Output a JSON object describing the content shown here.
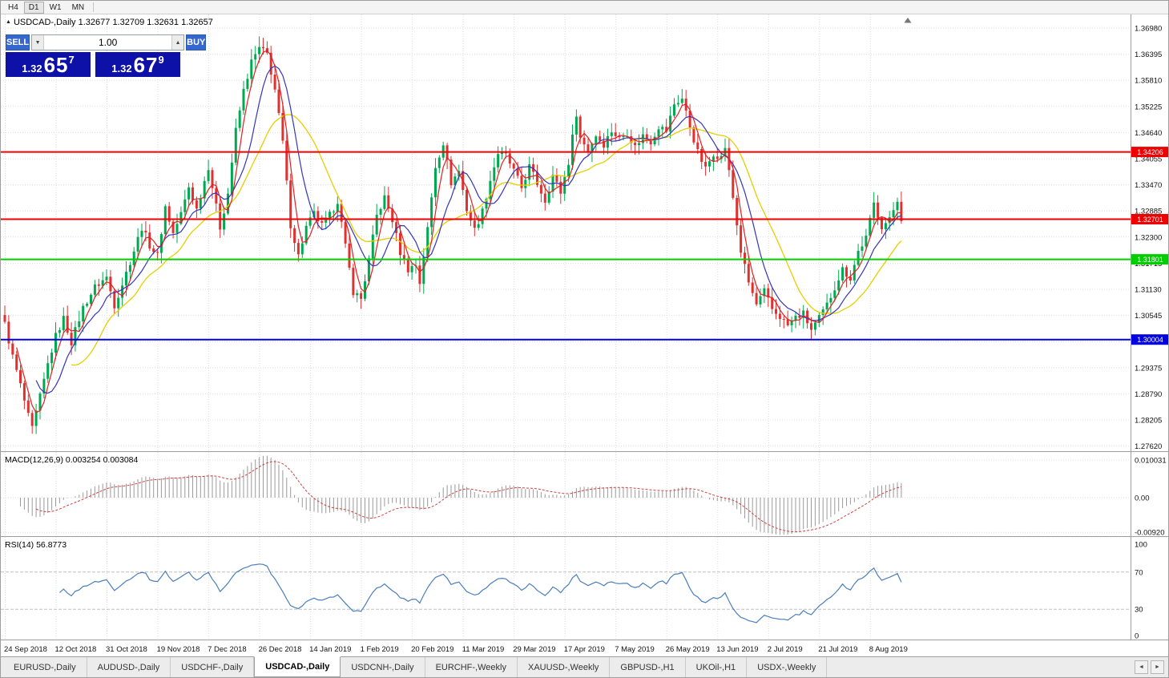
{
  "toolbar": {
    "timeframes": [
      "H4",
      "D1",
      "W1",
      "MN"
    ],
    "active": "D1"
  },
  "chart": {
    "marker": "▲",
    "symbol": "USDCAD-,Daily",
    "ohlc": "1.32677 1.32709 1.32631 1.32657"
  },
  "trade_panel": {
    "sell_label": "SELL",
    "buy_label": "BUY",
    "volume": "1.00",
    "spinner_down": "▼",
    "spinner_up": "▲",
    "sell_price": {
      "prefix": "1.32",
      "big": "65",
      "sup": "7"
    },
    "buy_price": {
      "prefix": "1.32",
      "big": "67",
      "sup": "9"
    }
  },
  "price_axis": {
    "ticks": [
      "1.36980",
      "1.36395",
      "1.35810",
      "1.35225",
      "1.34640",
      "1.34055",
      "1.33470",
      "1.32885",
      "1.32300",
      "1.31715",
      "1.31130",
      "1.30545",
      "1.29960",
      "1.29375",
      "1.28790",
      "1.28205",
      "1.27620"
    ]
  },
  "hlines": [
    {
      "label": "1.34206",
      "price": 1.34206,
      "color": "#EE0000"
    },
    {
      "label": "1.32701",
      "price": 1.32701,
      "color": "#EE0000"
    },
    {
      "label": "1.31801",
      "price": 1.31801,
      "color": "#00CE00"
    },
    {
      "label": "1.30004",
      "price": 1.30004,
      "color": "#0000E0"
    }
  ],
  "date_axis": {
    "labels": [
      "24 Sep 2018",
      "12 Oct 2018",
      "31 Oct 2018",
      "19 Nov 2018",
      "7 Dec 2018",
      "26 Dec 2018",
      "14 Jan 2019",
      "1 Feb 2019",
      "20 Feb 2019",
      "11 Mar 2019",
      "29 Mar 2019",
      "17 Apr 2019",
      "7 May 2019",
      "26 May 2019",
      "13 Jun 2019",
      "2 Jul 2019",
      "21 Jul 2019",
      "8 Aug 2019"
    ]
  },
  "macd": {
    "label": "MACD(12,26,9) 0.003254 0.003084",
    "ticks": [
      {
        "label": "0.010031",
        "value": 0.010031
      },
      {
        "label": "0.00",
        "value": 0
      },
      {
        "label": "-0.00920",
        "value": -0.0092
      }
    ]
  },
  "rsi": {
    "label": "RSI(14) 56.8773",
    "ticks": [
      {
        "label": "100",
        "value": 100
      },
      {
        "label": "70",
        "value": 70
      },
      {
        "label": "30",
        "value": 30
      },
      {
        "label": "0",
        "value": 0
      }
    ],
    "levels": [
      70,
      30
    ]
  },
  "tabs": {
    "items": [
      "EURUSD-,Daily",
      "AUDUSD-,Daily",
      "USDCHF-,Daily",
      "USDCAD-,Daily",
      "USDCNH-,Daily",
      "EURCHF-,Weekly",
      "XAUUSD-,Weekly",
      "GBPUSD-,H1",
      "UKOil-,H1",
      "USDX-,Weekly"
    ],
    "active_index": 3,
    "scroll_left": "◄",
    "scroll_right": "►"
  },
  "colors": {
    "bull": "#00A84F",
    "bear": "#E03030",
    "ma_fast": "#E02020",
    "ma_mid": "#3434BE",
    "ma_slow": "#E6CE00",
    "macd_hist": "#9A9A9A",
    "macd_signal": "#D04040",
    "rsi_line": "#4A7EBB"
  },
  "chart_data": {
    "type": "candlestick",
    "symbol": "USDCAD",
    "timeframe": "Daily",
    "n_candles": 230,
    "x_tick_every": 13,
    "y_top_price": 1.3698,
    "y_price_step": 0.00585,
    "y_range": [
      1.27525,
      1.37267
    ],
    "last_close": 1.32657,
    "hline_prices": [
      1.34206,
      1.32701,
      1.31801,
      1.30004
    ],
    "ma_periods": [
      4,
      9,
      18
    ],
    "macd_params": [
      12,
      26,
      9
    ],
    "rsi_period": 14,
    "price_anchors": [
      [
        0,
        1.3035
      ],
      [
        2,
        1.2962
      ],
      [
        4,
        1.2898
      ],
      [
        6,
        1.2828
      ],
      [
        7,
        1.28
      ],
      [
        9,
        1.2872
      ],
      [
        11,
        1.2945
      ],
      [
        13,
        1.3008
      ],
      [
        15,
        1.3048
      ],
      [
        17,
        1.2995
      ],
      [
        20,
        1.3072
      ],
      [
        23,
        1.3118
      ],
      [
        26,
        1.314
      ],
      [
        28,
        1.3078
      ],
      [
        30,
        1.3125
      ],
      [
        33,
        1.32
      ],
      [
        35,
        1.3252
      ],
      [
        37,
        1.3212
      ],
      [
        39,
        1.3188
      ],
      [
        41,
        1.3298
      ],
      [
        43,
        1.3238
      ],
      [
        45,
        1.3282
      ],
      [
        47,
        1.3342
      ],
      [
        49,
        1.3292
      ],
      [
        52,
        1.3388
      ],
      [
        55,
        1.3252
      ],
      [
        57,
        1.3328
      ],
      [
        59,
        1.3468
      ],
      [
        61,
        1.3558
      ],
      [
        63,
        1.3622
      ],
      [
        65,
        1.3652
      ],
      [
        67,
        1.364
      ],
      [
        69,
        1.356
      ],
      [
        71,
        1.3442
      ],
      [
        73,
        1.3258
      ],
      [
        75,
        1.3188
      ],
      [
        77,
        1.3252
      ],
      [
        79,
        1.3282
      ],
      [
        81,
        1.3255
      ],
      [
        83,
        1.3278
      ],
      [
        85,
        1.3312
      ],
      [
        87,
        1.3208
      ],
      [
        89,
        1.3108
      ],
      [
        91,
        1.3092
      ],
      [
        93,
        1.3178
      ],
      [
        95,
        1.3278
      ],
      [
        97,
        1.3318
      ],
      [
        99,
        1.3268
      ],
      [
        101,
        1.3196
      ],
      [
        103,
        1.3158
      ],
      [
        105,
        1.3168
      ],
      [
        106,
        1.3128
      ],
      [
        108,
        1.3248
      ],
      [
        110,
        1.3388
      ],
      [
        112,
        1.3442
      ],
      [
        114,
        1.3352
      ],
      [
        116,
        1.3378
      ],
      [
        118,
        1.3292
      ],
      [
        120,
        1.3246
      ],
      [
        122,
        1.3288
      ],
      [
        124,
        1.3358
      ],
      [
        126,
        1.3418
      ],
      [
        128,
        1.3412
      ],
      [
        130,
        1.3378
      ],
      [
        132,
        1.334
      ],
      [
        134,
        1.3388
      ],
      [
        136,
        1.335
      ],
      [
        138,
        1.3312
      ],
      [
        140,
        1.3368
      ],
      [
        142,
        1.333
      ],
      [
        144,
        1.3398
      ],
      [
        146,
        1.3508
      ],
      [
        147,
        1.3452
      ],
      [
        149,
        1.3424
      ],
      [
        151,
        1.3458
      ],
      [
        153,
        1.3438
      ],
      [
        155,
        1.3468
      ],
      [
        157,
        1.345
      ],
      [
        159,
        1.3464
      ],
      [
        161,
        1.3432
      ],
      [
        163,
        1.3458
      ],
      [
        165,
        1.3444
      ],
      [
        167,
        1.3478
      ],
      [
        169,
        1.3468
      ],
      [
        171,
        1.3528
      ],
      [
        173,
        1.354
      ],
      [
        175,
        1.3478
      ],
      [
        177,
        1.342
      ],
      [
        179,
        1.3382
      ],
      [
        181,
        1.3418
      ],
      [
        183,
        1.3408
      ],
      [
        184,
        1.3432
      ],
      [
        186,
        1.3318
      ],
      [
        188,
        1.3198
      ],
      [
        190,
        1.3128
      ],
      [
        192,
        1.3078
      ],
      [
        194,
        1.3108
      ],
      [
        196,
        1.3068
      ],
      [
        198,
        1.3052
      ],
      [
        200,
        1.3032
      ],
      [
        202,
        1.305
      ],
      [
        204,
        1.3058
      ],
      [
        206,
        1.3022
      ],
      [
        208,
        1.3048
      ],
      [
        210,
        1.3078
      ],
      [
        212,
        1.3118
      ],
      [
        214,
        1.3158
      ],
      [
        216,
        1.3138
      ],
      [
        218,
        1.3198
      ],
      [
        220,
        1.3228
      ],
      [
        222,
        1.3305
      ],
      [
        224,
        1.3255
      ],
      [
        226,
        1.3268
      ],
      [
        228,
        1.3315
      ],
      [
        229,
        1.32657
      ]
    ]
  }
}
